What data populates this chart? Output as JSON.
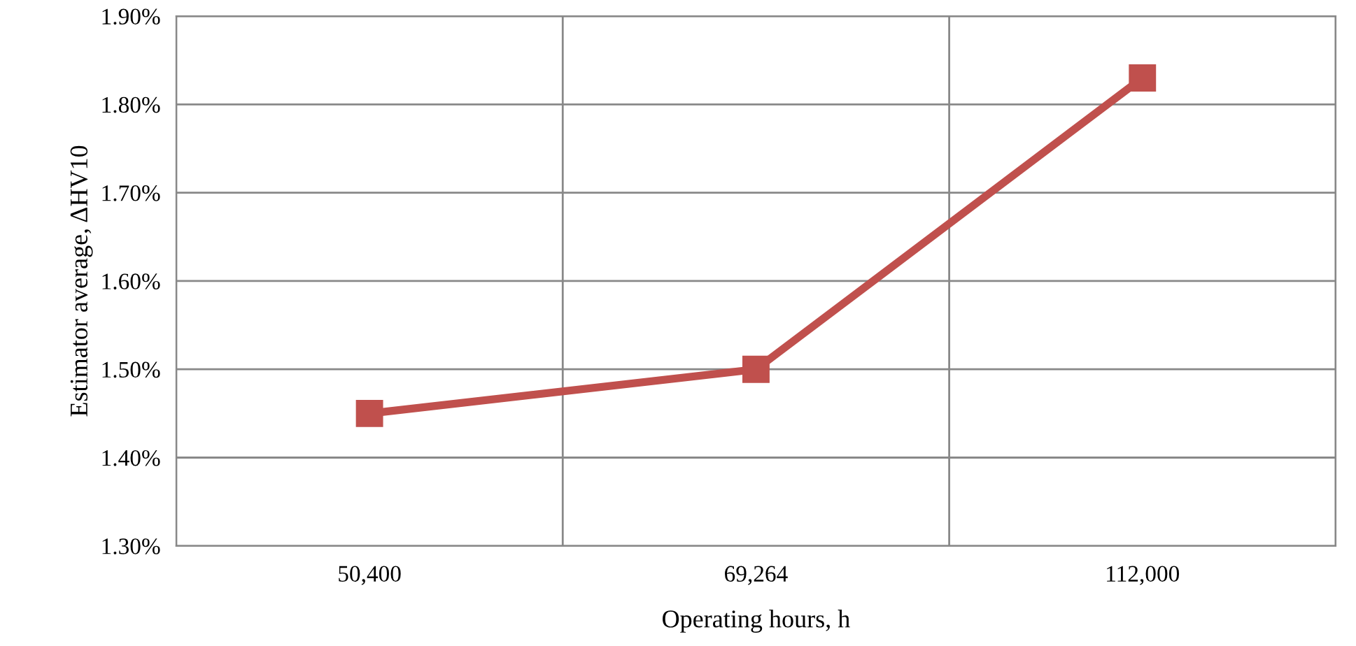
{
  "chart_data": {
    "type": "line",
    "xlabel": "Operating hours, h",
    "ylabel": "Estimator average, ΔHV10",
    "categories": [
      "50,400",
      "69,264",
      "112,000"
    ],
    "series": [
      {
        "color": "#c0504d",
        "values": [
          1.45,
          1.5,
          1.83
        ]
      }
    ],
    "ylim": [
      1.3,
      1.9
    ],
    "yticks": [
      {
        "value": 1.3,
        "label": "1.30%"
      },
      {
        "value": 1.4,
        "label": "1.40%"
      },
      {
        "value": 1.5,
        "label": "1.50%"
      },
      {
        "value": 1.6,
        "label": "1.60%"
      },
      {
        "value": 1.7,
        "label": "1.70%"
      },
      {
        "value": 1.8,
        "label": "1.80%"
      },
      {
        "value": 1.9,
        "label": "1.90%"
      }
    ],
    "grid": true,
    "marker": "square",
    "line_style": "solid",
    "legend": false
  }
}
